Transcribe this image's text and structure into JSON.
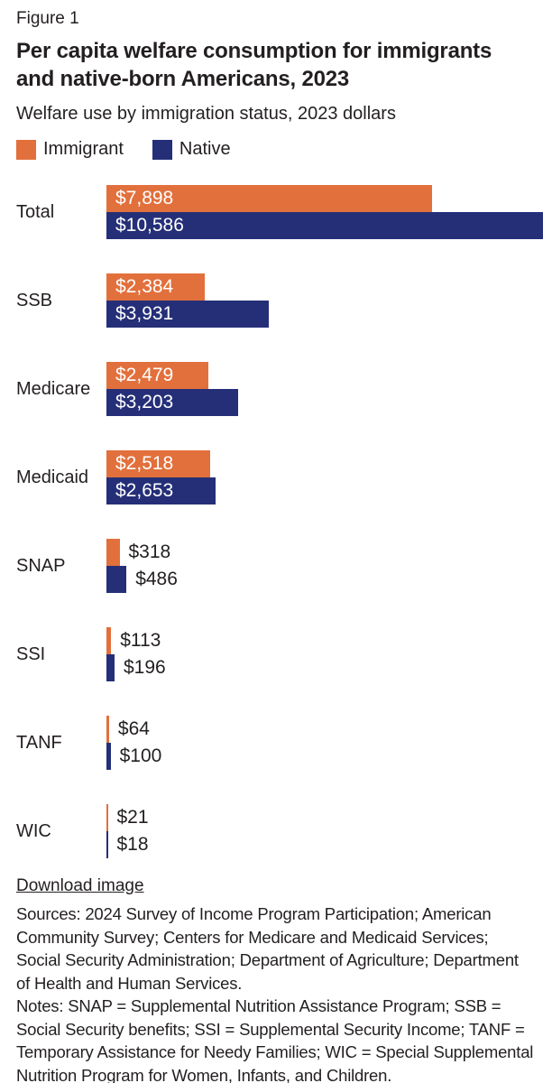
{
  "page": {
    "figure_label": "Figure 1",
    "title": "Per capita welfare consumption for immigrants and native-born Americans, 2023",
    "subtitle": "Welfare use by immigration status, 2023 dollars",
    "download_link": "Download image",
    "sources": "Sources: 2024 Survey of Income Program Participation; American Community Survey; Centers for Medicare and Medicaid Services; Social Security Administration; Department of Agriculture; Department of Health and Human Services.",
    "notes": "Notes: SNAP = Supplemental Nutrition Assistance Program; SSB = Social Security benefits; SSI = Supplemental Security Income; TANF = Temporary Assistance for Needy Families; WIC = Special Supplemental Nutrition Program for Women, Infants, and Children."
  },
  "colors": {
    "immigrant": "#E2703C",
    "native": "#252F78",
    "text": "#231F20",
    "value_label_inside": "#ffffff"
  },
  "chart_data": {
    "type": "bar",
    "orientation": "horizontal",
    "title": "Per capita welfare consumption for immigrants and native-born Americans, 2023",
    "subtitle": "Welfare use by immigration status, 2023 dollars",
    "categories": [
      "Total",
      "SSB",
      "Medicare",
      "Medicaid",
      "SNAP",
      "SSI",
      "TANF",
      "WIC"
    ],
    "series": [
      {
        "name": "Immigrant",
        "color": "#E2703C",
        "values": [
          7898,
          2384,
          2479,
          2518,
          318,
          113,
          64,
          21
        ],
        "labels": [
          "$7,898",
          "$2,384",
          "$2,479",
          "$2,518",
          "$318",
          "$113",
          "$64",
          "$21"
        ]
      },
      {
        "name": "Native",
        "color": "#252F78",
        "values": [
          10586,
          3931,
          3203,
          2653,
          486,
          196,
          100,
          18
        ],
        "labels": [
          "$10,586",
          "$3,931",
          "$3,203",
          "$2,653",
          "$486",
          "$196",
          "$100",
          "$18"
        ]
      }
    ],
    "xlim": [
      0,
      10586
    ],
    "value_prefix": "$",
    "grid": false,
    "legend_position": "top-left",
    "value_labels": "on-bars"
  }
}
